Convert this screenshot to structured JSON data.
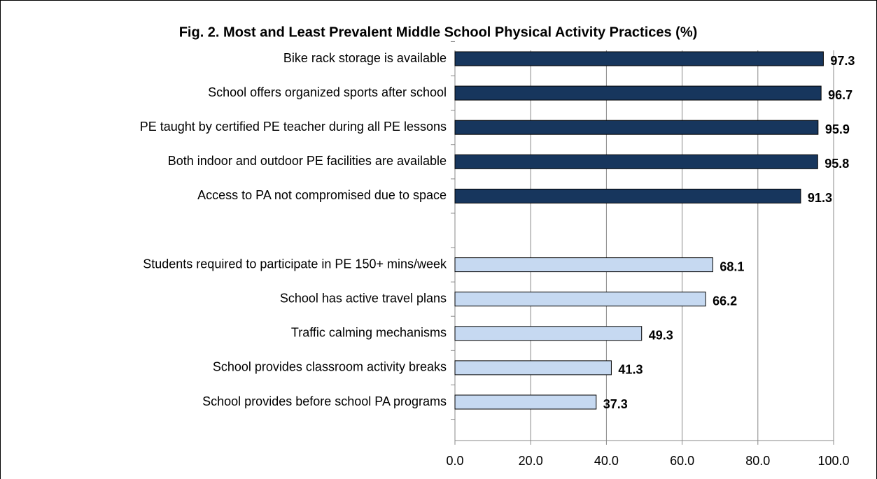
{
  "chart_data": {
    "type": "barh",
    "title": "Fig. 2. Most and Least Prevalent Middle School Physical Activity Practices (%)",
    "categories": [
      "Bike rack storage is available",
      "School offers organized sports after school",
      "PE taught by certified PE teacher during all PE lessons",
      "Both indoor and outdoor PE facilities are available",
      "Access to PA not compromised due to space",
      null,
      "Students required to participate in PE 150+ mins/week",
      "School has active travel plans",
      "Traffic calming mechanisms",
      "School provides classroom activity breaks",
      "School provides before school PA programs"
    ],
    "values": [
      97.3,
      96.7,
      95.9,
      95.8,
      91.3,
      null,
      68.1,
      66.2,
      49.3,
      41.3,
      37.3
    ],
    "colors": [
      "#17365d",
      "#17365d",
      "#17365d",
      "#17365d",
      "#17365d",
      null,
      "#c6d9f1",
      "#c6d9f1",
      "#c6d9f1",
      "#c6d9f1",
      "#c6d9f1"
    ],
    "xlim": [
      0,
      100
    ],
    "xticks": [
      {
        "value": 0,
        "label": "0.0"
      },
      {
        "value": 20,
        "label": "20.0"
      },
      {
        "value": 40,
        "label": "40.0"
      },
      {
        "value": 60,
        "label": "60.0"
      },
      {
        "value": 80,
        "label": "80.0"
      },
      {
        "value": 100,
        "label": "100.0"
      }
    ],
    "grid": true
  }
}
